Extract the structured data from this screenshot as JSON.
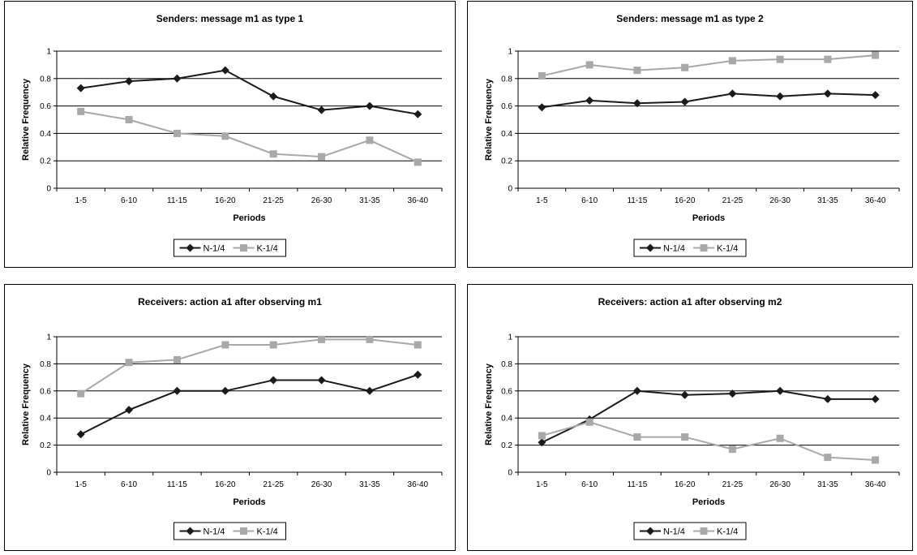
{
  "chart_data": [
    {
      "type": "line",
      "title": "Senders: message m1 as type 1",
      "xlabel": "Periods",
      "ylabel": "Relative Frequency",
      "ylim": [
        0,
        1
      ],
      "yticks": [
        "0",
        "0.2",
        "0.4",
        "0.6",
        "0.8",
        "1"
      ],
      "categories": [
        "1-5",
        "6-10",
        "11-15",
        "16-20",
        "21-25",
        "26-30",
        "31-35",
        "36-40"
      ],
      "grid": true,
      "legend_position": "bottom",
      "series": [
        {
          "name": "N-1/4",
          "color": "#1a1a1a",
          "marker": "diamond",
          "values": [
            0.73,
            0.78,
            0.8,
            0.86,
            0.67,
            0.57,
            0.6,
            0.54
          ]
        },
        {
          "name": "K-1/4",
          "color": "#a8a8a8",
          "marker": "square",
          "values": [
            0.56,
            0.5,
            0.4,
            0.38,
            0.25,
            0.23,
            0.35,
            0.19
          ]
        }
      ]
    },
    {
      "type": "line",
      "title": "Senders: message m1 as type 2",
      "xlabel": "Periods",
      "ylabel": "Relative Frequency",
      "ylim": [
        0,
        1
      ],
      "yticks": [
        "0",
        "0.2",
        "0.4",
        "0.6",
        "0.8",
        "1"
      ],
      "categories": [
        "1-5",
        "6-10",
        "11-15",
        "16-20",
        "21-25",
        "26-30",
        "31-35",
        "36-40"
      ],
      "grid": true,
      "legend_position": "bottom",
      "series": [
        {
          "name": "N-1/4",
          "color": "#1a1a1a",
          "marker": "diamond",
          "values": [
            0.59,
            0.64,
            0.62,
            0.63,
            0.69,
            0.67,
            0.69,
            0.68
          ]
        },
        {
          "name": "K-1/4",
          "color": "#a8a8a8",
          "marker": "square",
          "values": [
            0.82,
            0.9,
            0.86,
            0.88,
            0.93,
            0.94,
            0.94,
            0.97
          ]
        }
      ]
    },
    {
      "type": "line",
      "title": "Receivers: action a1 after observing m1",
      "xlabel": "Periods",
      "ylabel": "Relative Frequency",
      "ylim": [
        0,
        1
      ],
      "yticks": [
        "0",
        "0.2",
        "0.4",
        "0.6",
        "0.8",
        "1"
      ],
      "categories": [
        "1-5",
        "6-10",
        "11-15",
        "16-20",
        "21-25",
        "26-30",
        "31-35",
        "36-40"
      ],
      "grid": true,
      "legend_position": "bottom",
      "series": [
        {
          "name": "N-1/4",
          "color": "#1a1a1a",
          "marker": "diamond",
          "values": [
            0.28,
            0.46,
            0.6,
            0.6,
            0.68,
            0.68,
            0.6,
            0.72
          ]
        },
        {
          "name": "K-1/4",
          "color": "#a8a8a8",
          "marker": "square",
          "values": [
            0.58,
            0.81,
            0.83,
            0.94,
            0.94,
            0.98,
            0.98,
            0.94
          ]
        }
      ]
    },
    {
      "type": "line",
      "title": "Receivers: action a1 after observing m2",
      "xlabel": "Periods",
      "ylabel": "Relative Frequency",
      "ylim": [
        0,
        1
      ],
      "yticks": [
        "0",
        "0.2",
        "0.4",
        "0.6",
        "0.8",
        "1"
      ],
      "categories": [
        "1-5",
        "6-10",
        "11-15",
        "16-20",
        "21-25",
        "26-30",
        "31-35",
        "36-40"
      ],
      "grid": true,
      "legend_position": "bottom",
      "series": [
        {
          "name": "N-1/4",
          "color": "#1a1a1a",
          "marker": "diamond",
          "values": [
            0.22,
            0.39,
            0.6,
            0.57,
            0.58,
            0.6,
            0.54,
            0.54
          ]
        },
        {
          "name": "K-1/4",
          "color": "#a8a8a8",
          "marker": "square",
          "values": [
            0.27,
            0.37,
            0.26,
            0.26,
            0.17,
            0.25,
            0.11,
            0.09
          ]
        }
      ]
    }
  ]
}
